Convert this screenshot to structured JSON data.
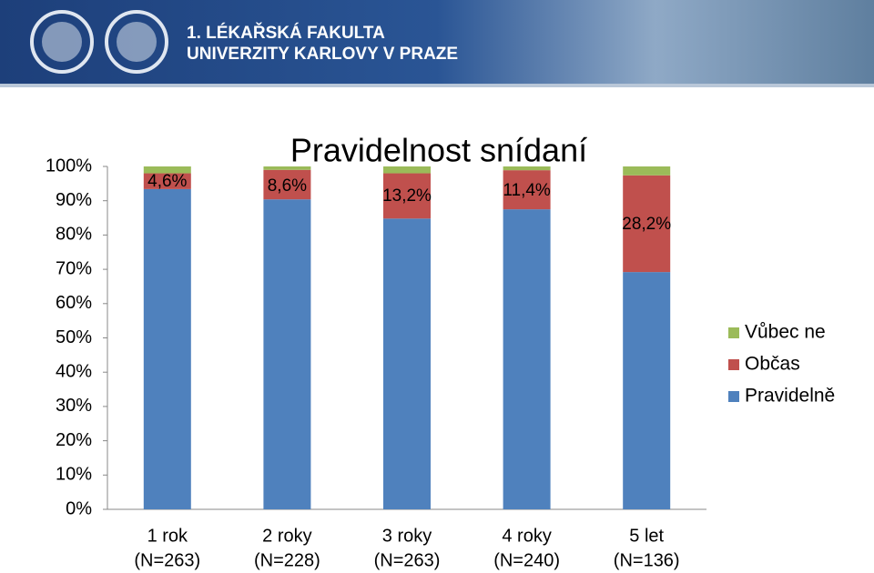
{
  "header": {
    "line1": "1. LÉKAŘSKÁ FAKULTA",
    "line2": "UNIVERZITY KARLOVY V PRAZE"
  },
  "chart_data": {
    "type": "stacked-bar",
    "title": "Pravidelnost snídaní",
    "categories": [
      [
        "1 rok",
        "(N=263)"
      ],
      [
        "2 roky",
        "(N=228)"
      ],
      [
        "3 roky",
        "(N=263)"
      ],
      [
        "4 roky",
        "(N=240)"
      ],
      [
        "5 let",
        "(N=136)"
      ]
    ],
    "series": [
      {
        "name": "Pravidelně",
        "color": "#4f81bd",
        "values": [
          93.4,
          90.4,
          84.8,
          87.5,
          69.2
        ]
      },
      {
        "name": "Občas",
        "color": "#c0504d",
        "values": [
          4.6,
          8.6,
          13.2,
          11.4,
          28.2
        ],
        "value_labels": [
          "4,6%",
          "8,6%",
          "13,2%",
          "11,4%",
          "28,2%"
        ]
      },
      {
        "name": "Vůbec ne",
        "color": "#9bbb59",
        "values": [
          2.0,
          1.0,
          2.0,
          1.1,
          2.6
        ]
      }
    ],
    "ylim": [
      0,
      100
    ],
    "yticks": [
      {
        "value": 0,
        "label": "0%"
      },
      {
        "value": 10,
        "label": "10%"
      },
      {
        "value": 20,
        "label": "20%"
      },
      {
        "value": 30,
        "label": "30%"
      },
      {
        "value": 40,
        "label": "40%"
      },
      {
        "value": 50,
        "label": "50%"
      },
      {
        "value": 60,
        "label": "60%"
      },
      {
        "value": 70,
        "label": "70%"
      },
      {
        "value": 80,
        "label": "80%"
      },
      {
        "value": 90,
        "label": "90%"
      },
      {
        "value": 100,
        "label": "100%"
      }
    ],
    "legend": "right"
  }
}
